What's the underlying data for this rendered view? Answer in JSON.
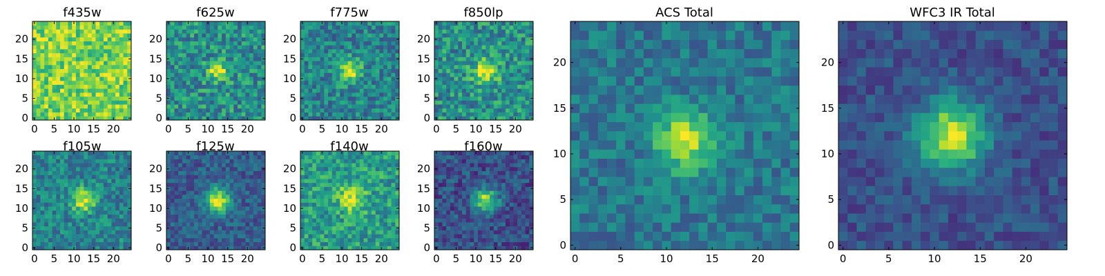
{
  "figure": {
    "panels": [
      {
        "title": "f435w"
      },
      {
        "title": "f625w"
      },
      {
        "title": "f775w"
      },
      {
        "title": "f850lp"
      },
      {
        "title": "f105w"
      },
      {
        "title": "f125w"
      },
      {
        "title": "f140w"
      },
      {
        "title": "f160w"
      },
      {
        "title": "ACS Total"
      },
      {
        "title": "WFC3 IR Total"
      }
    ]
  },
  "chart_data": [
    {
      "type": "heatmap",
      "title": "f435w",
      "grid_size": 25,
      "xlim": [
        -0.5,
        24.5
      ],
      "ylim": [
        -0.5,
        24.5
      ],
      "x_ticks": [
        0,
        5,
        10,
        15,
        20
      ],
      "y_ticks": [
        0,
        5,
        10,
        15,
        20
      ],
      "colormap": "viridis",
      "source_center": null,
      "source_peak": 0.0,
      "source_sigma": 2.5,
      "background_level": 0.8,
      "noise_level": 0.2,
      "seed": 11
    },
    {
      "type": "heatmap",
      "title": "f625w",
      "grid_size": 25,
      "xlim": [
        -0.5,
        24.5
      ],
      "ylim": [
        -0.5,
        24.5
      ],
      "x_ticks": [
        0,
        5,
        10,
        15,
        20
      ],
      "y_ticks": [
        0,
        5,
        10,
        15,
        20
      ],
      "colormap": "viridis",
      "source_center": [
        12.5,
        12
      ],
      "source_peak": 0.5,
      "source_sigma": 1.7,
      "background_level": 0.5,
      "noise_level": 0.22,
      "seed": 23
    },
    {
      "type": "heatmap",
      "title": "f775w",
      "grid_size": 25,
      "xlim": [
        -0.5,
        24.5
      ],
      "ylim": [
        -0.5,
        24.5
      ],
      "x_ticks": [
        0,
        5,
        10,
        15,
        20
      ],
      "y_ticks": [
        0,
        5,
        10,
        15,
        20
      ],
      "colormap": "viridis",
      "source_center": [
        12,
        12
      ],
      "source_peak": 0.5,
      "source_sigma": 2.0,
      "background_level": 0.45,
      "noise_level": 0.2,
      "seed": 37
    },
    {
      "type": "heatmap",
      "title": "f850lp",
      "grid_size": 25,
      "xlim": [
        -0.5,
        24.5
      ],
      "ylim": [
        -0.5,
        24.5
      ],
      "x_ticks": [
        0,
        5,
        10,
        15,
        20
      ],
      "y_ticks": [
        0,
        5,
        10,
        15,
        20
      ],
      "colormap": "viridis",
      "source_center": [
        12.5,
        12
      ],
      "source_peak": 0.45,
      "source_sigma": 2.3,
      "background_level": 0.5,
      "noise_level": 0.22,
      "seed": 41
    },
    {
      "type": "heatmap",
      "title": "f105w",
      "grid_size": 25,
      "xlim": [
        -0.5,
        24.5
      ],
      "ylim": [
        -0.5,
        24.5
      ],
      "x_ticks": [
        0,
        5,
        10,
        15,
        20
      ],
      "y_ticks": [
        0,
        5,
        10,
        15,
        20
      ],
      "colormap": "viridis",
      "source_center": [
        12.5,
        12
      ],
      "source_peak": 0.5,
      "source_sigma": 2.1,
      "background_level": 0.45,
      "noise_level": 0.18,
      "seed": 53
    },
    {
      "type": "heatmap",
      "title": "f125w",
      "grid_size": 25,
      "xlim": [
        -0.5,
        24.5
      ],
      "ylim": [
        -0.5,
        24.5
      ],
      "x_ticks": [
        0,
        5,
        10,
        15,
        20
      ],
      "y_ticks": [
        0,
        5,
        10,
        15,
        20
      ],
      "colormap": "viridis",
      "source_center": [
        12.5,
        12
      ],
      "source_peak": 0.65,
      "source_sigma": 2.3,
      "background_level": 0.3,
      "noise_level": 0.14,
      "seed": 67
    },
    {
      "type": "heatmap",
      "title": "f140w",
      "grid_size": 25,
      "xlim": [
        -0.5,
        24.5
      ],
      "ylim": [
        -0.5,
        24.5
      ],
      "x_ticks": [
        0,
        5,
        10,
        15,
        20
      ],
      "y_ticks": [
        0,
        5,
        10,
        15,
        20
      ],
      "colormap": "viridis",
      "source_center": [
        12.5,
        12.5
      ],
      "source_peak": 0.4,
      "source_sigma": 2.4,
      "background_level": 0.55,
      "noise_level": 0.2,
      "seed": 71
    },
    {
      "type": "heatmap",
      "title": "f160w",
      "grid_size": 25,
      "xlim": [
        -0.5,
        24.5
      ],
      "ylim": [
        -0.5,
        24.5
      ],
      "x_ticks": [
        0,
        5,
        10,
        15,
        20
      ],
      "y_ticks": [
        0,
        5,
        10,
        15,
        20
      ],
      "colormap": "viridis",
      "source_center": [
        12.5,
        12
      ],
      "source_peak": 0.65,
      "source_sigma": 2.1,
      "background_level": 0.25,
      "noise_level": 0.16,
      "seed": 83
    },
    {
      "type": "heatmap",
      "title": "ACS Total",
      "grid_size": 25,
      "xlim": [
        -0.5,
        24.5
      ],
      "ylim": [
        -0.5,
        24.5
      ],
      "x_ticks": [
        0,
        5,
        10,
        15,
        20
      ],
      "y_ticks": [
        0,
        5,
        10,
        15,
        20
      ],
      "colormap": "viridis",
      "source_center": [
        12,
        11.5
      ],
      "source_peak": 0.55,
      "source_sigma": 2.2,
      "background_level": 0.4,
      "noise_level": 0.14,
      "seed": 97
    },
    {
      "type": "heatmap",
      "title": "WFC3 IR Total",
      "grid_size": 25,
      "xlim": [
        -0.5,
        24.5
      ],
      "ylim": [
        -0.5,
        24.5
      ],
      "x_ticks": [
        0,
        5,
        10,
        15,
        20
      ],
      "y_ticks": [
        0,
        5,
        10,
        15,
        20
      ],
      "colormap": "viridis",
      "source_center": [
        12,
        12
      ],
      "source_peak": 0.7,
      "source_sigma": 2.6,
      "background_level": 0.25,
      "noise_level": 0.11,
      "seed": 101
    }
  ]
}
